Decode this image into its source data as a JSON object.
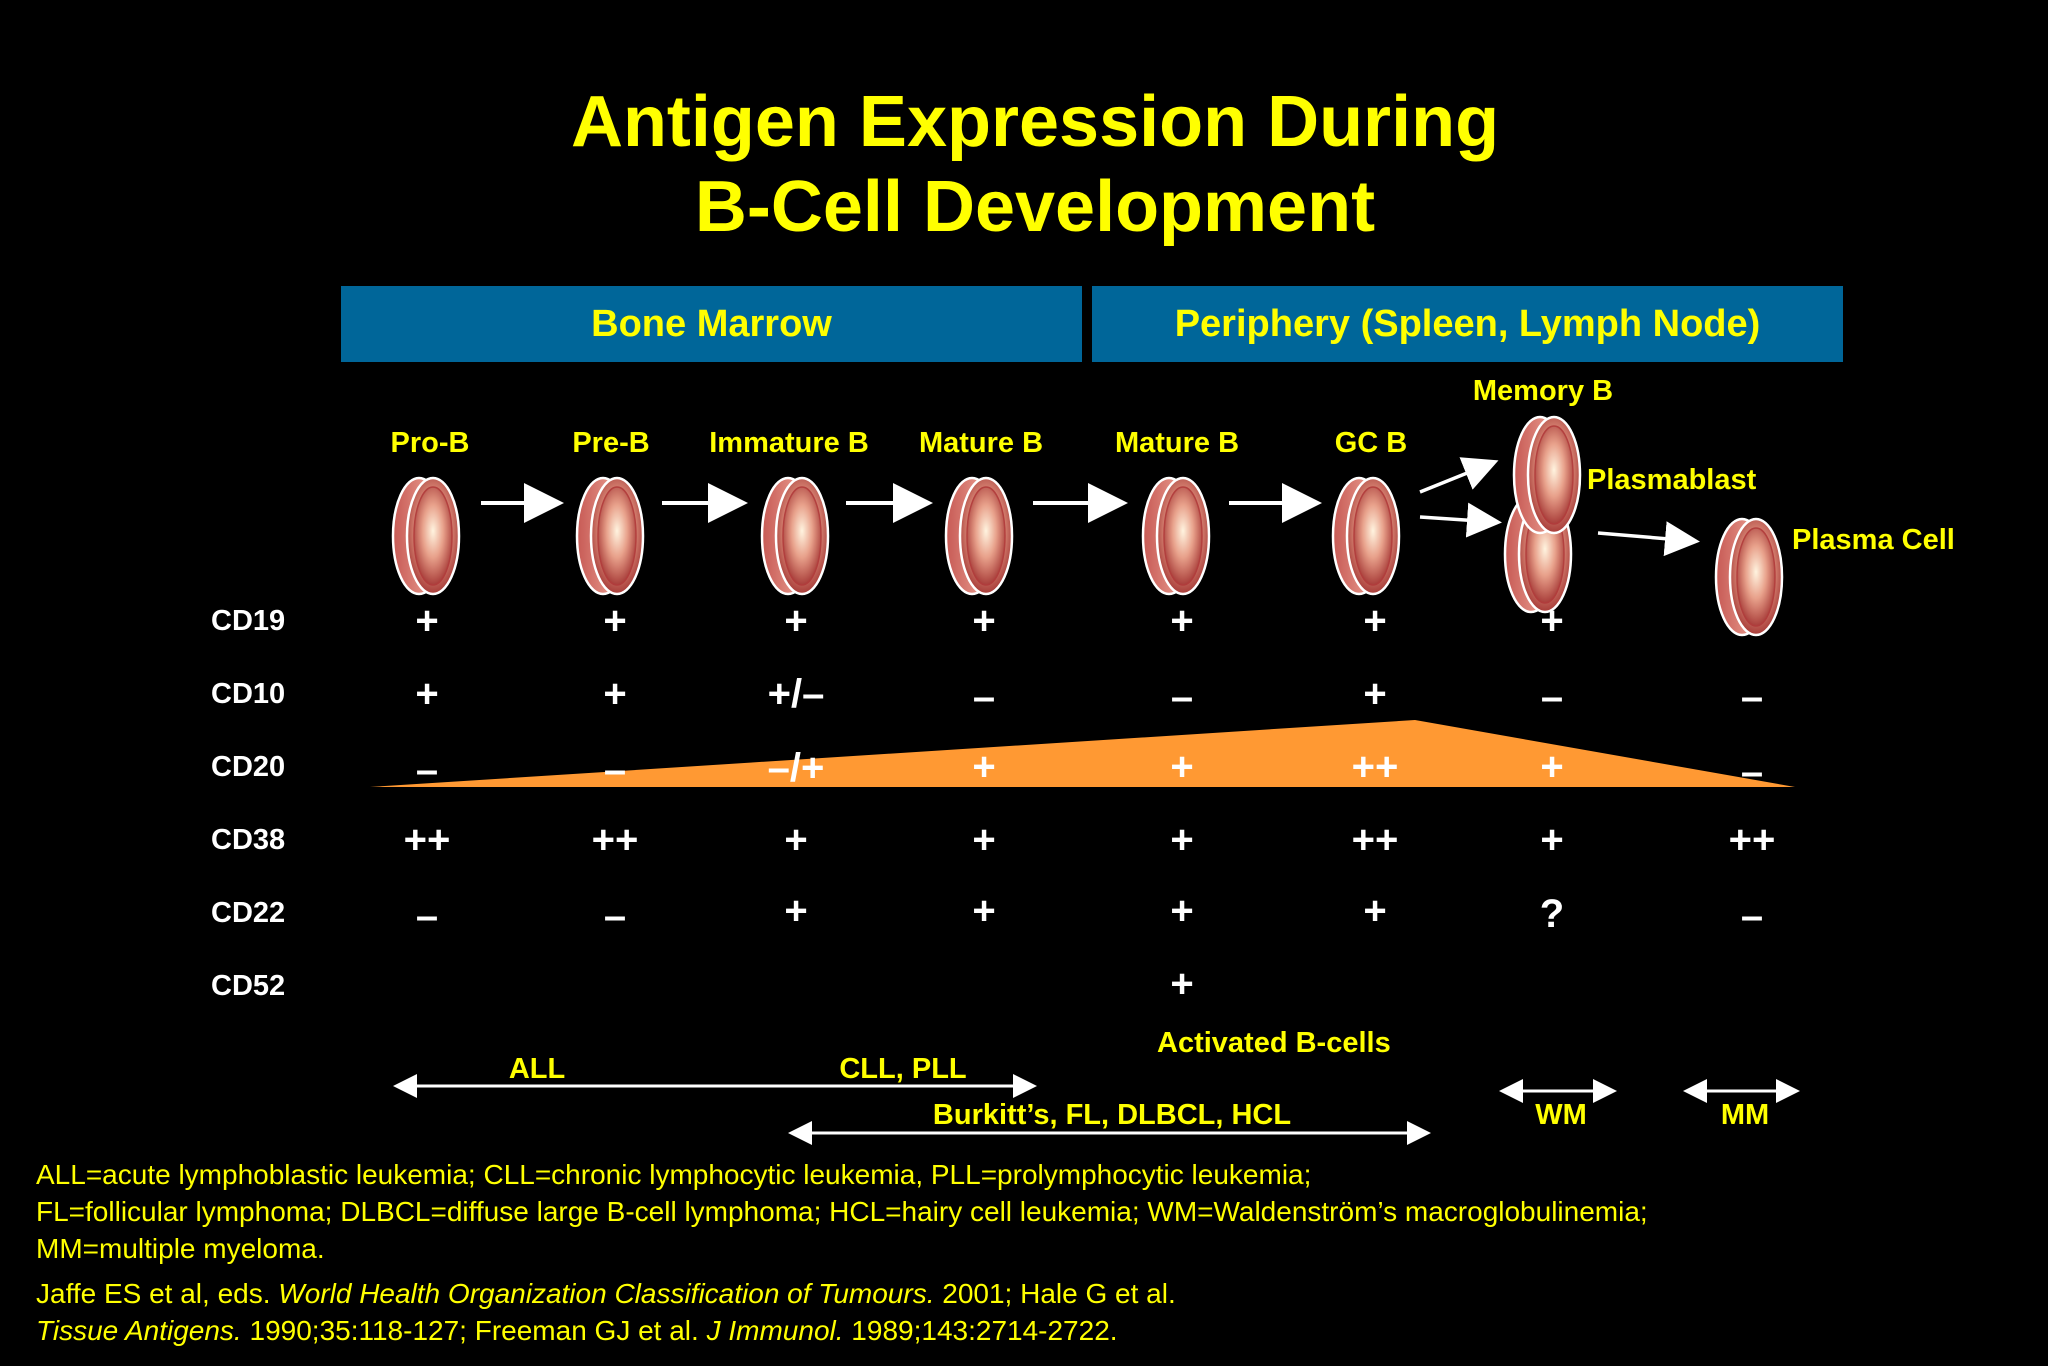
{
  "title": {
    "line1": "Antigen Expression During",
    "line2": "B-Cell Development"
  },
  "regions": {
    "bone_marrow": "Bone Marrow",
    "periphery": "Periphery (Spleen, Lymph Node)"
  },
  "stages": {
    "pro_b": "Pro-B",
    "pre_b": "Pre-B",
    "immature_b": "Immature B",
    "mature_b_marrow": "Mature B",
    "mature_b_periphery": "Mature B",
    "gc_b": "GC B",
    "memory_b": "Memory B",
    "plasmablast": "Plasmablast",
    "plasma_cell": "Plasma Cell"
  },
  "markers": [
    "CD19",
    "CD10",
    "CD20",
    "CD38",
    "CD22",
    "CD52"
  ],
  "expression": {
    "cd19": [
      "+",
      "+",
      "+",
      "+",
      "+",
      "+",
      "+"
    ],
    "cd10": [
      "+",
      "+",
      "+/–",
      "–",
      "–",
      "+",
      "–",
      "–"
    ],
    "cd20": [
      "–",
      "–",
      "–/+",
      "+",
      "+",
      "++",
      "+",
      "–"
    ],
    "cd38": [
      "++",
      "++",
      "+",
      "+",
      "+",
      "++",
      "+",
      "++"
    ],
    "cd22": [
      "–",
      "–",
      "+",
      "+",
      "+",
      "+",
      "?",
      "–"
    ],
    "cd52": "+"
  },
  "activated_note": "Activated B-cells",
  "diseases": {
    "all": "ALL",
    "cll_pll": "CLL, PLL",
    "burkitt": "Burkitt’s, FL, DLBCL, HCL",
    "wm": "WM",
    "mm": "MM"
  },
  "footnote": {
    "abbrev1": "ALL=acute lymphoblastic leukemia; CLL=chronic lymphocytic leukemia, PLL=prolymphocytic leukemia;",
    "abbrev2": "FL=follicular lymphoma; DLBCL=diffuse large B-cell lymphoma; HCL=hairy cell leukemia; WM=Waldenström’s macroglobulinemia;",
    "abbrev3": "MM=multiple myeloma.",
    "ref1_a": "Jaffe ES et al, eds. ",
    "ref1_b": "World Health Organization Classification of Tumours.",
    "ref1_c": " 2001; Hale G et al.",
    "ref2_a": "Tissue Antigens.",
    "ref2_b": " 1990;35:118-127; Freeman GJ et al. ",
    "ref2_c": "J Immunol.",
    "ref2_d": " 1989;143:2714-2722."
  },
  "colors": {
    "background": "#000000",
    "title": "#ffff00",
    "region_bar": "#006699",
    "cd20_wedge": "#ff9933"
  }
}
